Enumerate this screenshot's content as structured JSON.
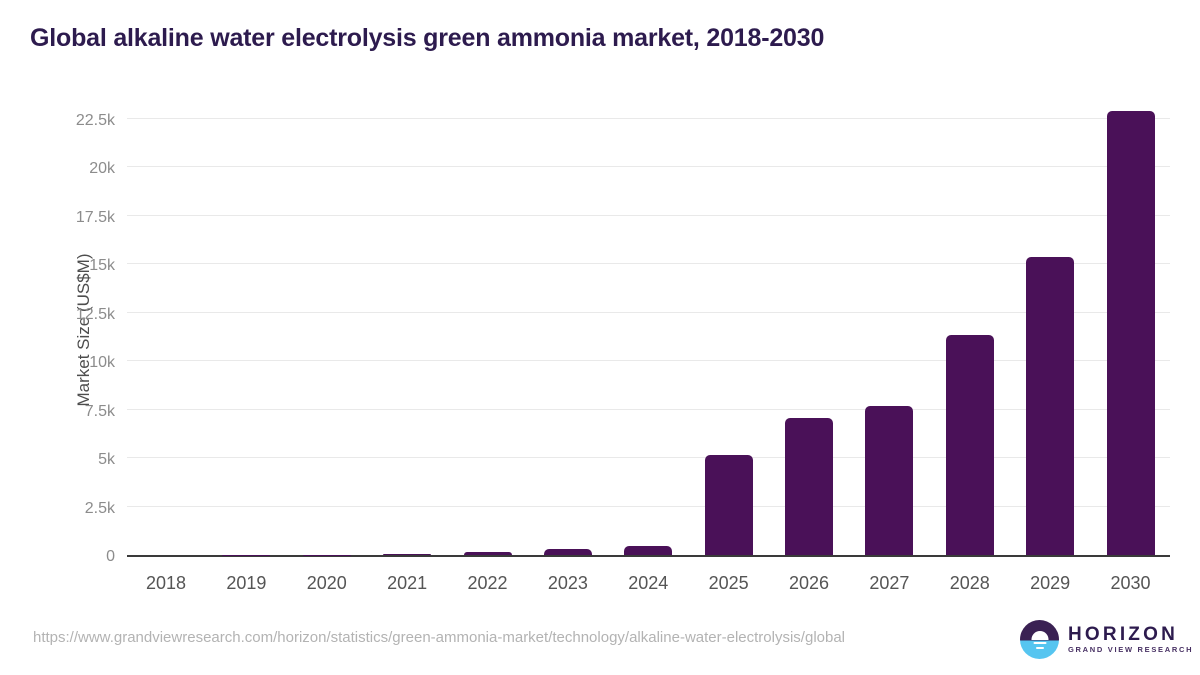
{
  "page": {
    "title": "Global alkaline water electrolysis green ammonia market, 2018-2030",
    "source_url": "https://www.grandviewresearch.com/horizon/statistics/green-ammonia-market/technology/alkaline-water-electrolysis/global"
  },
  "logo": {
    "name": "HORIZON",
    "subtitle": "GRAND VIEW RESEARCH",
    "icon": "horizon-sunrise-icon",
    "circle_top_color": "#3a2153",
    "circle_bottom_color": "#56c5f0"
  },
  "colors": {
    "title_text": "#2d1b4e",
    "bar": "#4a1158",
    "gridline": "#e9e9e9",
    "axis_line": "#3a3a3a",
    "y_tick_label": "#8c8c8c",
    "y_axis_title": "#4d4d4d",
    "x_tick_label": "#555555",
    "source_url_text": "#b3b3b3"
  },
  "chart_data": {
    "type": "bar",
    "title": "Global alkaline water electrolysis green ammonia market, 2018-2030",
    "xlabel": "",
    "ylabel": "Market Size (US$M)",
    "categories": [
      "2018",
      "2019",
      "2020",
      "2021",
      "2022",
      "2023",
      "2024",
      "2025",
      "2026",
      "2027",
      "2028",
      "2029",
      "2030"
    ],
    "values": [
      3,
      8,
      15,
      30,
      150,
      300,
      440,
      5170,
      7070,
      7680,
      11320,
      15370,
      22900
    ],
    "ylim": [
      0,
      22500
    ],
    "yticks": [
      0,
      2500,
      5000,
      7500,
      10000,
      12500,
      15000,
      17500,
      20000,
      22500
    ],
    "ytick_labels": [
      "0",
      "2.5k",
      "5k",
      "7.5k",
      "10k",
      "12.5k",
      "15k",
      "17.5k",
      "20k",
      "22.5k"
    ],
    "grid": "horizontal",
    "legend": false,
    "bar_color": "#4a1158"
  }
}
